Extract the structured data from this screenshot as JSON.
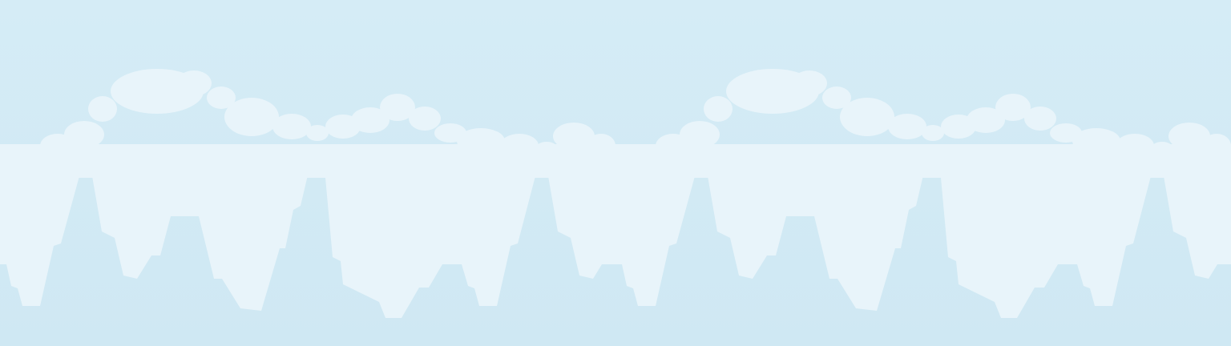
{
  "scene": {
    "type": "parallax-background-layer",
    "description_name": "sky-with-cloud-band",
    "colors": {
      "sky_top": "#d5ecf6",
      "sky_bottom": "#cfe8f3",
      "cloud_fill": "#e8f4fa"
    },
    "repeating_tiles": 2
  }
}
